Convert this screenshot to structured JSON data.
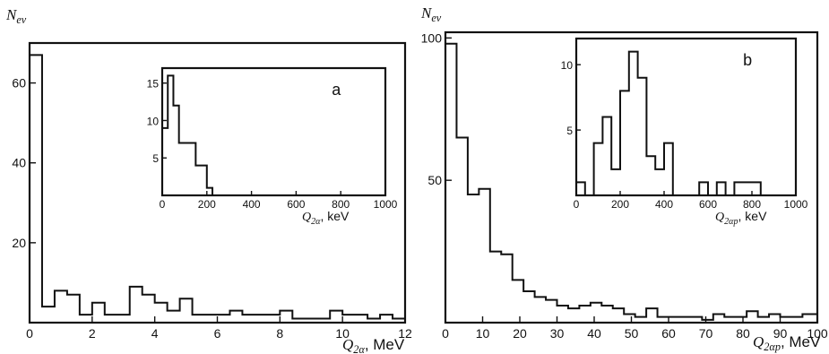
{
  "chart_data": [
    {
      "panel": "left-main",
      "type": "histogram",
      "ylabel": "N_ev",
      "xlabel": "Q_2α, MeV",
      "xlim": [
        0,
        12
      ],
      "ylim": [
        0,
        70
      ],
      "xticks": [
        "0",
        "2",
        "4",
        "6",
        "8",
        "10",
        "12"
      ],
      "yticks": [
        "20",
        "40",
        "60"
      ],
      "edges": [
        0,
        0.4,
        0.8,
        1.2,
        1.6,
        2.0,
        2.4,
        2.8,
        3.2,
        3.6,
        4.0,
        4.4,
        4.8,
        5.2,
        5.6,
        6.0,
        6.4,
        6.8,
        7.2,
        7.6,
        8.0,
        8.4,
        8.8,
        9.2,
        9.6,
        10.0,
        10.4,
        10.8,
        11.2,
        11.6,
        12.0
      ],
      "values": [
        67,
        4,
        8,
        7,
        2,
        5,
        2,
        2,
        9,
        7,
        5,
        3,
        6,
        2,
        2,
        2,
        3,
        2,
        2,
        2,
        3,
        1,
        1,
        1,
        3,
        2,
        2,
        1,
        2,
        1
      ]
    },
    {
      "panel": "left-inset",
      "label": "a",
      "type": "histogram",
      "xlabel": "Q_2α, keV",
      "xlim": [
        0,
        1000
      ],
      "ylim": [
        0,
        17
      ],
      "xticks": [
        "0",
        "200",
        "400",
        "600",
        "800",
        "1000"
      ],
      "yticks": [
        "5",
        "10",
        "15"
      ],
      "edges": [
        0,
        25,
        50,
        75,
        100,
        125,
        150,
        175,
        200,
        225
      ],
      "values": [
        9,
        16,
        12,
        7,
        7,
        7,
        4,
        4,
        1
      ]
    },
    {
      "panel": "right-main",
      "type": "histogram",
      "ylabel": "N_ev",
      "xlabel": "Q_2αp, MeV",
      "xlim": [
        0,
        100
      ],
      "ylim": [
        0,
        102
      ],
      "xticks": [
        "0",
        "10",
        "20",
        "30",
        "40",
        "50",
        "60",
        "70",
        "80",
        "90",
        "100"
      ],
      "yticks": [
        "50",
        "100"
      ],
      "edges": [
        0,
        3,
        6,
        9,
        12,
        15,
        18,
        21,
        24,
        27,
        30,
        33,
        36,
        39,
        42,
        45,
        48,
        51,
        54,
        57,
        60,
        63,
        66,
        69,
        72,
        75,
        78,
        81,
        84,
        87,
        90,
        93,
        96,
        100
      ],
      "values": [
        98,
        65,
        45,
        47,
        25,
        24,
        15,
        11,
        9,
        8,
        6,
        5,
        6,
        7,
        6,
        5,
        3,
        2,
        5,
        2,
        2,
        2,
        2,
        1,
        3,
        2,
        2,
        4,
        2,
        3,
        2,
        2,
        3
      ]
    },
    {
      "panel": "right-inset",
      "label": "b",
      "type": "histogram",
      "xlabel": "Q_2αp, keV",
      "xlim": [
        0,
        1000
      ],
      "ylim": [
        0,
        12
      ],
      "xticks": [
        "0",
        "200",
        "400",
        "600",
        "800",
        "1000"
      ],
      "yticks": [
        "5",
        "10"
      ],
      "edges": [
        0,
        40,
        80,
        120,
        160,
        200,
        240,
        280,
        320,
        360,
        400,
        440,
        480,
        520,
        560,
        600,
        640,
        680,
        720,
        760,
        800,
        840
      ],
      "values": [
        1,
        0,
        4,
        6,
        2,
        8,
        11,
        9,
        3,
        2,
        4,
        0,
        0,
        0,
        1,
        0,
        1,
        0,
        1,
        1,
        1
      ]
    }
  ]
}
